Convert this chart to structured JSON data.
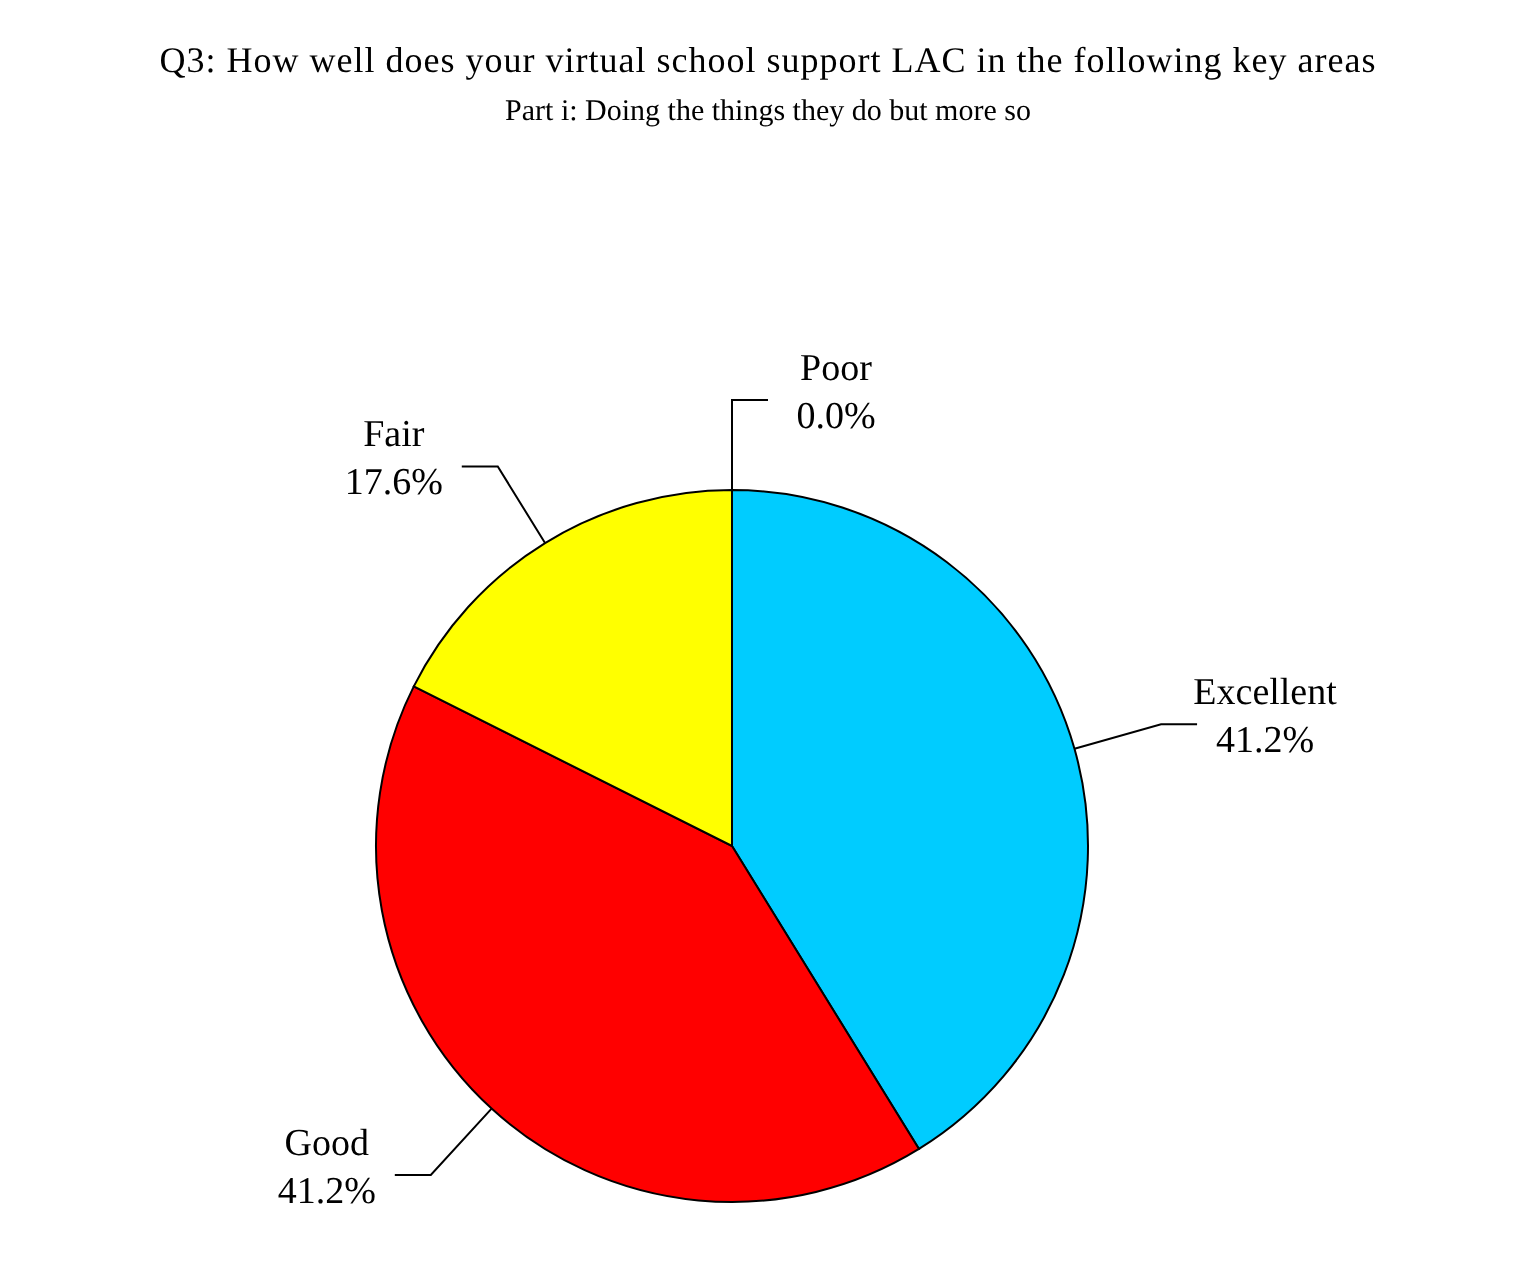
{
  "chart_data": {
    "type": "pie",
    "title": "Q3: How well does your virtual school support LAC in the following key areas",
    "subtitle": "Part i: Doing the things they do but more so",
    "categories": [
      "Excellent",
      "Good",
      "Fair",
      "Poor"
    ],
    "values": [
      41.2,
      41.2,
      17.6,
      0.0
    ],
    "colors": [
      "#00ccff",
      "#ff0000",
      "#ffff00",
      "#000080"
    ],
    "value_labels": [
      "41.2%",
      "41.2%",
      "17.6%",
      "0.0%"
    ]
  }
}
